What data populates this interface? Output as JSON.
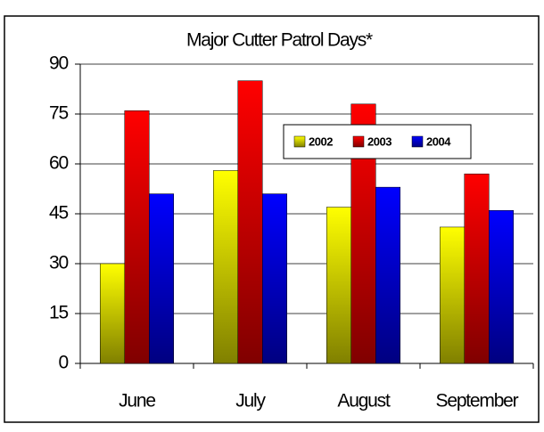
{
  "chart_data": {
    "type": "bar",
    "title": "Major Cutter Patrol Days*",
    "categories": [
      "June",
      "July",
      "August",
      "September"
    ],
    "series": [
      {
        "name": "2002",
        "color": "#ffff00",
        "values": [
          30,
          58,
          47,
          41
        ]
      },
      {
        "name": "2003",
        "color": "#ff0000",
        "values": [
          76,
          85,
          78,
          57
        ]
      },
      {
        "name": "2004",
        "color": "#0000ff",
        "values": [
          51,
          51,
          53,
          46
        ]
      }
    ],
    "ylim": [
      0,
      90
    ],
    "yticks": [
      0,
      15,
      30,
      45,
      60,
      75,
      90
    ],
    "grid": true,
    "legend": "upper right"
  }
}
